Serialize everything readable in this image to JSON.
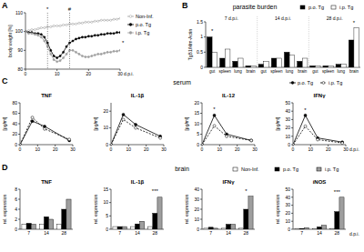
{
  "chart_data": [
    {
      "type": "line",
      "ylabel": "body weight [%]",
      "xlabel": "d.p.i.",
      "x": [
        0,
        1,
        2,
        3,
        4,
        5,
        6,
        7,
        8,
        9,
        10,
        11,
        12,
        13,
        14,
        15,
        16,
        17,
        18,
        19,
        20,
        21,
        22,
        23,
        24,
        25,
        26,
        27,
        28,
        29,
        30
      ],
      "xlim": [
        0,
        30
      ],
      "xticks": [
        0,
        10,
        20,
        30
      ],
      "ylim": [
        80,
        110
      ],
      "yticks": [
        80,
        90,
        100,
        110
      ],
      "legend": "right",
      "series": [
        {
          "name": "Non-Inf.",
          "color": "#9e9e9e",
          "marker": "open_circle",
          "line_style": "solid",
          "values": [
            100,
            100.5,
            101,
            101,
            101.5,
            102,
            102,
            102.5,
            102.5,
            103,
            103,
            103,
            103.5,
            103.5,
            104,
            104,
            104,
            104.5,
            104.5,
            105,
            105,
            105,
            105.5,
            105.5,
            106,
            106,
            106,
            106,
            106.5,
            106.5,
            107
          ]
        },
        {
          "name": "p.o. Tg",
          "color": "#000000",
          "marker": "circle",
          "line_style": "solid",
          "values": [
            100,
            99.5,
            99.5,
            99,
            99,
            98.5,
            97,
            94,
            90,
            87,
            86,
            87,
            89,
            92,
            94,
            95,
            96,
            96.5,
            97,
            97,
            97.5,
            97.5,
            98,
            98,
            98.5,
            98.5,
            99,
            99,
            99,
            99.5,
            99.5
          ]
        },
        {
          "name": "i.p. Tg",
          "color": "#9e9e9e",
          "marker": "circle",
          "line_style": "solid",
          "values": [
            100,
            99,
            99,
            98.5,
            98,
            97,
            95,
            92,
            88,
            85,
            84,
            84.5,
            86,
            88,
            90,
            90,
            89,
            88,
            87,
            86.5,
            86.5,
            87,
            87.5,
            88,
            88,
            88.5,
            89,
            89,
            89.5,
            89.5,
            90
          ]
        }
      ],
      "annotations": [
        {
          "text": "A"
        },
        {
          "text": "*",
          "x": 7
        },
        {
          "text": "#",
          "x": 14
        },
        {
          "text": "*",
          "x": 30,
          "y": 93
        }
      ]
    },
    {
      "type": "bar",
      "subtitle": "parasite burden",
      "ylabel": "TgB1/Mm-Actin",
      "categories": [
        "gut",
        "spleen",
        "lung",
        "brain",
        "gut",
        "spleen",
        "lung",
        "brain",
        "gut",
        "spleen",
        "lung",
        "brain"
      ],
      "group_labels": [
        "7 d.p.i.",
        "14 d.p.i.",
        "28 d.p.i."
      ],
      "ylim": [
        0,
        1.5
      ],
      "yticks": [
        0,
        0.5,
        1,
        1.5
      ],
      "legend": "top-right",
      "series": [
        {
          "name": "p.o. Tg",
          "color": "#000000",
          "values": [
            1.0,
            0.3,
            0.2,
            0.05,
            0.1,
            0.3,
            0.5,
            0.2,
            0.05,
            0.05,
            0.1,
            0.9
          ]
        },
        {
          "name": "i.p. Tg",
          "color": "#ffffff",
          "values": [
            0.5,
            0.6,
            0.3,
            0.05,
            0.2,
            0.3,
            0.4,
            0.3,
            0.05,
            0.05,
            0.1,
            1.3
          ]
        }
      ],
      "annotations": [
        {
          "text": "B"
        },
        {
          "text": "*",
          "x": 0,
          "y": 1.15
        },
        {
          "text": "*",
          "x": 11,
          "y": 1.42
        }
      ]
    },
    {
      "type": "line",
      "title": "TNF",
      "subtitle": "serum",
      "ylabel": "[pg/ml]",
      "x": [
        0,
        7,
        14,
        28
      ],
      "xlim": [
        0,
        30
      ],
      "xticks": [
        0,
        10,
        20,
        30
      ],
      "ylim": [
        0,
        80
      ],
      "yticks": [
        0,
        20,
        40,
        60,
        80
      ],
      "legend": "top-right",
      "series": [
        {
          "name": "p.o. Tg",
          "color": "#000000",
          "marker": "circle",
          "line_style": "solid",
          "values": [
            0,
            45,
            35,
            8
          ]
        },
        {
          "name": "i.p. Tg",
          "color": "#000000",
          "marker": "open_circle",
          "line_style": "dashed",
          "values": [
            0,
            52,
            30,
            10
          ]
        }
      ],
      "annotations": [
        {
          "text": "C"
        }
      ]
    },
    {
      "type": "line",
      "title": "IL-1β",
      "ylabel": "[pg/ml]",
      "x": [
        0,
        7,
        14,
        28
      ],
      "xlim": [
        0,
        30
      ],
      "xticks": [
        0,
        10,
        20,
        30
      ],
      "ylim": [
        0,
        25
      ],
      "yticks": [
        0,
        10,
        20
      ],
      "series": [
        {
          "color": "#000000",
          "marker": "circle",
          "line_style": "solid",
          "values": [
            0,
            18,
            12,
            5
          ]
        },
        {
          "color": "#000000",
          "marker": "open_circle",
          "line_style": "dashed",
          "values": [
            0,
            15,
            10,
            4
          ]
        }
      ]
    },
    {
      "type": "line",
      "title": "IL-12",
      "ylabel": "[pg/ml]",
      "x": [
        0,
        7,
        14,
        28
      ],
      "xlim": [
        0,
        30
      ],
      "xticks": [
        0,
        10,
        20,
        30
      ],
      "ylim": [
        0,
        20
      ],
      "yticks": [
        0,
        5,
        10,
        15,
        20
      ],
      "series": [
        {
          "color": "#000000",
          "marker": "circle",
          "line_style": "solid",
          "values": [
            0,
            14,
            5,
            2
          ]
        },
        {
          "color": "#000000",
          "marker": "open_circle",
          "line_style": "dashed",
          "values": [
            0,
            9,
            4,
            2
          ]
        }
      ],
      "annotations": [
        {
          "text": "*",
          "x": 7,
          "y": 16
        }
      ]
    },
    {
      "type": "line",
      "title": "IFNγ",
      "ylabel": "[pg/ml]",
      "xlabel": "d.p.i.",
      "x": [
        0,
        7,
        14,
        28
      ],
      "xlim": [
        0,
        30
      ],
      "xticks": [
        0,
        10,
        20,
        30
      ],
      "ylim": [
        0,
        50
      ],
      "yticks": [
        0,
        10,
        20,
        30,
        40,
        50
      ],
      "series": [
        {
          "color": "#000000",
          "marker": "circle",
          "line_style": "solid",
          "values": [
            0,
            35,
            8,
            3
          ]
        },
        {
          "color": "#000000",
          "marker": "open_circle",
          "line_style": "dashed",
          "values": [
            0,
            22,
            6,
            2
          ]
        }
      ],
      "annotations": [
        {
          "text": "*",
          "x": 7,
          "y": 39
        }
      ]
    },
    {
      "type": "bar",
      "title": "TNF",
      "subtitle": "brain",
      "ylabel": "rel. expression",
      "categories": [
        "7",
        "14",
        "28"
      ],
      "ylim": [
        0,
        8
      ],
      "yticks": [
        0,
        2,
        4,
        6,
        8
      ],
      "legend": "top-right",
      "series": [
        {
          "name": "Non-Inf.",
          "color": "#ffffff",
          "values": [
            1,
            1,
            1
          ]
        },
        {
          "name": "p.o. Tg",
          "color": "#000000",
          "values": [
            1.2,
            2.5,
            4
          ]
        },
        {
          "name": "i.p. Tg",
          "color": "#9e9e9e",
          "values": [
            1,
            2,
            6
          ]
        }
      ],
      "annotations": [
        {
          "text": "D"
        }
      ]
    },
    {
      "type": "bar",
      "title": "IL-1β",
      "ylabel": "rel. expression",
      "categories": [
        "7",
        "14",
        "28"
      ],
      "ylim": [
        0,
        15
      ],
      "yticks": [
        0,
        5,
        10,
        15
      ],
      "series": [
        {
          "color": "#ffffff",
          "values": [
            1,
            1,
            1
          ]
        },
        {
          "color": "#000000",
          "values": [
            1,
            2,
            6
          ]
        },
        {
          "color": "#9e9e9e",
          "values": [
            1,
            3,
            12
          ]
        }
      ],
      "annotations": [
        {
          "text": "***",
          "x": 2,
          "y": 13.5
        }
      ]
    },
    {
      "type": "bar",
      "title": "IFNγ",
      "ylabel": "rel. expression",
      "categories": [
        "7",
        "14",
        "28"
      ],
      "ylim": [
        0,
        40
      ],
      "yticks": [
        0,
        10,
        20,
        30,
        40
      ],
      "series": [
        {
          "color": "#ffffff",
          "values": [
            1,
            1,
            1
          ]
        },
        {
          "color": "#000000",
          "values": [
            2,
            5,
            20
          ]
        },
        {
          "color": "#9e9e9e",
          "values": [
            1,
            5,
            33
          ]
        }
      ],
      "annotations": [
        {
          "text": "*",
          "x": 2,
          "y": 36
        }
      ]
    },
    {
      "type": "bar",
      "title": "iNOS",
      "ylabel": "rel. expression",
      "xlabel": "d.p.i.",
      "categories": [
        "7",
        "14",
        "28"
      ],
      "ylim": [
        0,
        50
      ],
      "yticks": [
        0,
        10,
        20,
        30,
        40,
        50
      ],
      "series": [
        {
          "color": "#ffffff",
          "values": [
            1,
            1,
            1
          ]
        },
        {
          "color": "#000000",
          "values": [
            1,
            3,
            22
          ]
        },
        {
          "color": "#9e9e9e",
          "values": [
            2,
            5,
            40
          ]
        }
      ],
      "annotations": [
        {
          "text": "***",
          "x": 2,
          "y": 44
        }
      ]
    }
  ]
}
